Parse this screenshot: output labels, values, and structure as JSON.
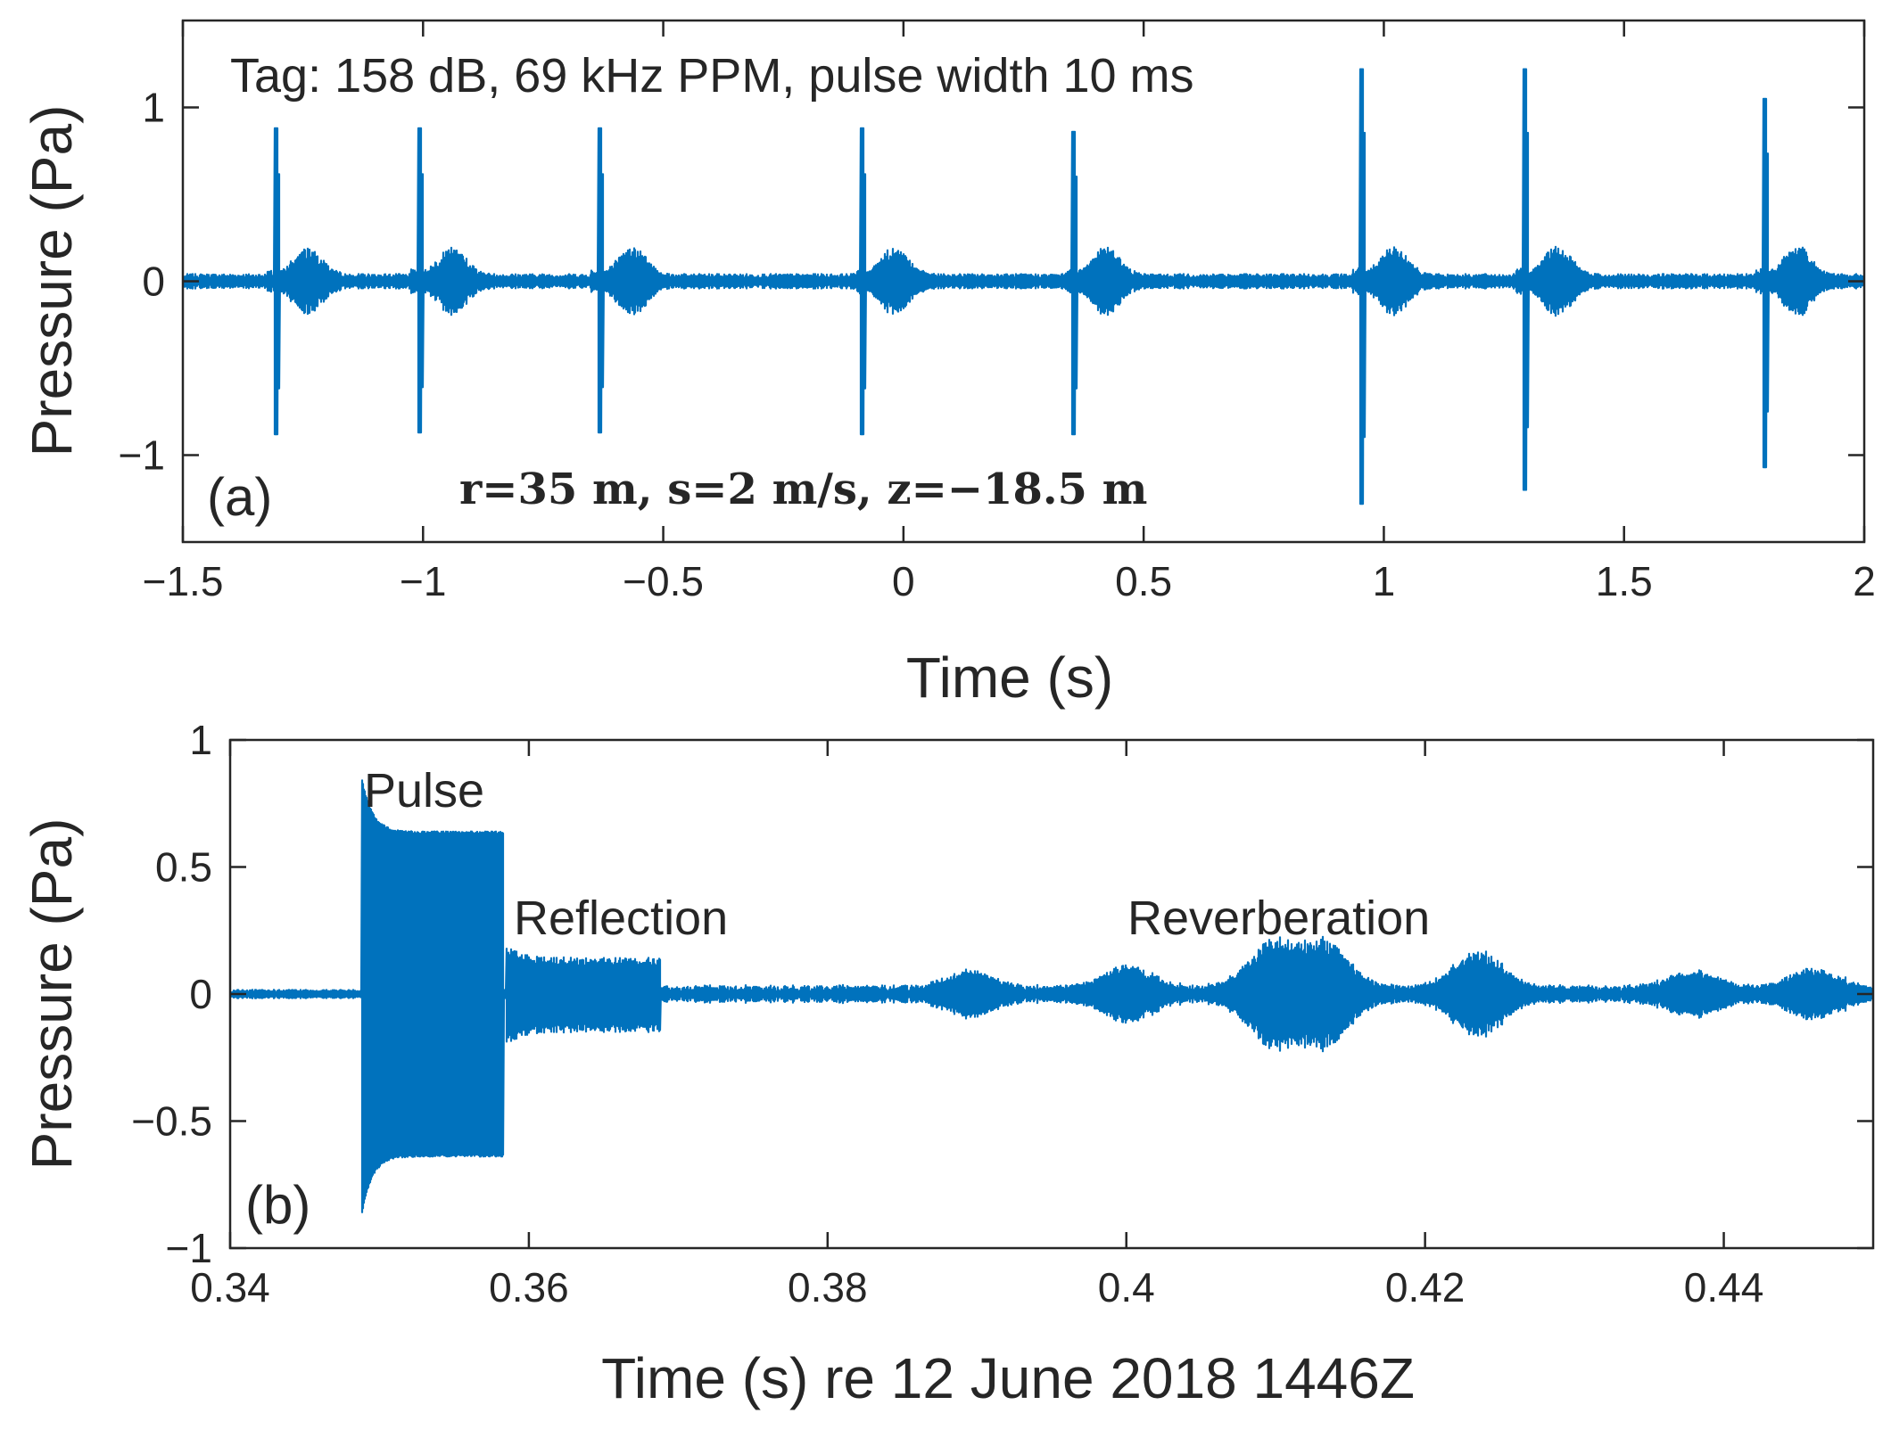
{
  "chart_data": [
    {
      "type": "line",
      "panel_label": "(a)",
      "title": "",
      "xlabel": "Time (s)",
      "ylabel": "Pressure (Pa)",
      "xlim": [
        -1.5,
        2
      ],
      "ylim": [
        -1.5,
        1.5
      ],
      "xticks": [
        -1.5,
        -1,
        -0.5,
        0,
        0.5,
        1,
        1.5,
        2
      ],
      "xtick_labels": [
        "−1.5",
        "−1",
        "−0.5",
        "0",
        "0.5",
        "1",
        "1.5",
        "2"
      ],
      "yticks": [
        -1,
        0,
        1
      ],
      "ytick_labels": [
        "−1",
        "0",
        "1"
      ],
      "line_color": "#0072BD",
      "annotations": {
        "tag": "Tag:  158 dB,  69 kHz PPM,  pulse width 10 ms",
        "params": "r=35 m, s=2 m/s, z=−18.5 m"
      },
      "noise_amplitude": 0.03,
      "pulses": [
        {
          "t": -1.31,
          "max": 0.88,
          "min": -0.88
        },
        {
          "t": -1.01,
          "max": 0.88,
          "min": -0.87
        },
        {
          "t": -0.635,
          "max": 0.88,
          "min": -0.87
        },
        {
          "t": -0.09,
          "max": 0.88,
          "min": -0.88
        },
        {
          "t": 0.35,
          "max": 0.86,
          "min": -0.88
        },
        {
          "t": 0.95,
          "max": 1.22,
          "min": -1.28
        },
        {
          "t": 1.29,
          "max": 1.22,
          "min": -1.2
        },
        {
          "t": 1.79,
          "max": 1.05,
          "min": -1.07
        }
      ],
      "reverb_amplitude": 0.14
    },
    {
      "type": "line",
      "panel_label": "(b)",
      "title": "",
      "xlabel": "Time (s) re 12 June 2018 1446Z",
      "ylabel": "Pressure (Pa)",
      "xlim": [
        0.34,
        0.45
      ],
      "ylim": [
        -1,
        1
      ],
      "xticks": [
        0.34,
        0.36,
        0.38,
        0.4,
        0.42,
        0.44
      ],
      "xtick_labels": [
        "0.34",
        "0.36",
        "0.38",
        "0.4",
        "0.42",
        "0.44"
      ],
      "yticks": [
        -1,
        -0.5,
        0,
        0.5,
        1
      ],
      "ytick_labels": [
        "−1",
        "−0.5",
        "0",
        "0.5",
        "1"
      ],
      "line_color": "#0072BD",
      "annotations": {
        "pulse": "Pulse",
        "reflection": "Reflection",
        "reverberation": "Reverberation"
      },
      "segments": {
        "pulse": {
          "start": 0.3488,
          "end": 0.3583,
          "peak": 0.85,
          "trough": -0.87,
          "steady": 0.63
        },
        "reflection": {
          "start": 0.3585,
          "end": 0.3688,
          "amplitude": 0.13
        },
        "reverberation_peaks": [
          {
            "t": 0.3895,
            "a": 0.06
          },
          {
            "t": 0.4,
            "a": 0.08
          },
          {
            "t": 0.4097,
            "a": 0.16
          },
          {
            "t": 0.4133,
            "a": 0.16
          },
          {
            "t": 0.4235,
            "a": 0.13
          },
          {
            "t": 0.438,
            "a": 0.06
          },
          {
            "t": 0.446,
            "a": 0.07
          }
        ]
      }
    }
  ]
}
